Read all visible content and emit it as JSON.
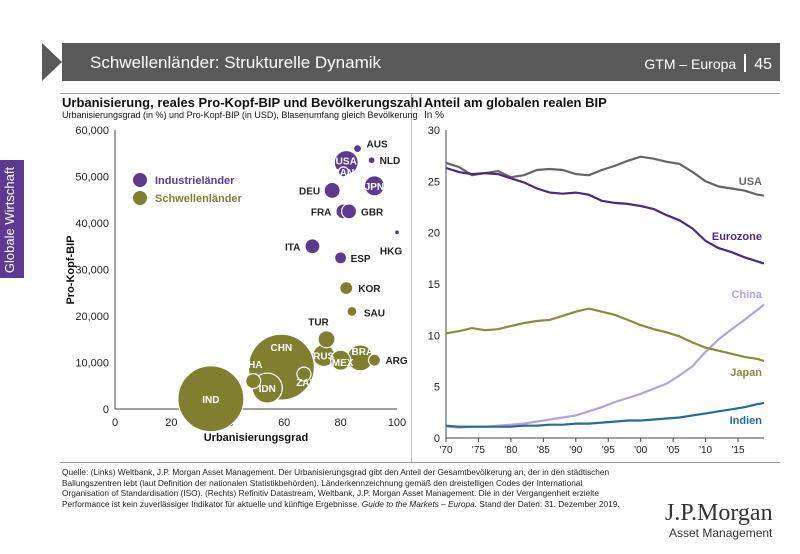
{
  "header": {
    "title": "Schwellenländer: Strukturelle Dynamik",
    "series_name": "GTM – Europa",
    "page_number": "45"
  },
  "side_tab": {
    "label": "Globale Wirtschaft",
    "color": "#5c3a8f"
  },
  "colors": {
    "developed": "#5c3a8f",
    "emerging": "#7f7f2f",
    "eurozone": "#4b2a83",
    "japan": "#8b8b3a",
    "china": "#b3a2dd",
    "india": "#1f6f9a",
    "usa": "#666666"
  },
  "footnote": {
    "text": "Quelle: (Links) Weltbank, J.P. Morgan Asset Management. Der Urbanisierungsgrad gibt den Anteil der Gesamtbevölkerung an, der in den städtischen Ballungszentren lebt (laut Definition der nationalen Statistikbehörden). Länderkennzeichnung gemäß den dreistelligen Codes der International Organisation of Standardisation (ISO). (Rechts) Refinitiv Datastream, Weltbank, J.P. Morgan Asset Management. Die in der Vergangenheit erzielte Performance ist kein zuverlässiger Indikator für aktuelle und künftige Ergebnisse.",
    "italic": "Guide to the Markets – Europa.",
    "tail": "Stand der Daten: 31. Dezember 2019."
  },
  "logo": {
    "main": "J.P.Morgan",
    "sub": "Asset Management"
  },
  "chart_data": [
    {
      "type": "scatter",
      "title": "Urbanisierung, reales Pro-Kopf-BIP und Bevölkerungszahl",
      "subtitle": "Urbanisierungsgrad (in %) und Pro-Kopf-BIP (in USD), Blasenumfang gleich Bevölkerung",
      "xlabel": "Urbanisierungsgrad",
      "ylabel": "Pro-Kopf-BIP",
      "xlim": [
        0,
        100
      ],
      "ylim": [
        0,
        60000
      ],
      "xticks": [
        "0",
        "20",
        "40",
        "60",
        "80",
        "100"
      ],
      "yticks": [
        "0",
        "10,000",
        "20,000",
        "30,000",
        "40,000",
        "50,000",
        "60,000"
      ],
      "grid": false,
      "legend_position": "top-left",
      "legend": [
        {
          "name": "Industrieländer",
          "group": "developed"
        },
        {
          "name": "Schwellenländer",
          "group": "emerging"
        }
      ],
      "points": [
        {
          "label": "USA",
          "x": 82,
          "y": 53000,
          "r": 12,
          "group": "developed"
        },
        {
          "label": "AUS",
          "x": 86,
          "y": 56000,
          "r": 4,
          "group": "developed"
        },
        {
          "label": "NLD",
          "x": 91,
          "y": 53500,
          "r": 3.5,
          "group": "developed"
        },
        {
          "label": "CAN",
          "x": 81,
          "y": 51000,
          "r": 5,
          "group": "developed"
        },
        {
          "label": "JPN",
          "x": 92,
          "y": 48000,
          "r": 10,
          "group": "developed"
        },
        {
          "label": "DEU",
          "x": 77,
          "y": 47000,
          "r": 8,
          "group": "developed"
        },
        {
          "label": "FRA",
          "x": 81,
          "y": 42500,
          "r": 7.5,
          "group": "developed"
        },
        {
          "label": "GBR",
          "x": 83,
          "y": 42500,
          "r": 7.5,
          "group": "developed"
        },
        {
          "label": "HKG",
          "x": 100,
          "y": 38000,
          "r": 2.5,
          "group": "developed"
        },
        {
          "label": "ITA",
          "x": 70,
          "y": 35000,
          "r": 7.5,
          "group": "developed"
        },
        {
          "label": "ESP",
          "x": 80,
          "y": 32500,
          "r": 6,
          "group": "developed"
        },
        {
          "label": "KOR",
          "x": 82,
          "y": 26000,
          "r": 6.5,
          "group": "emerging"
        },
        {
          "label": "SAU",
          "x": 84,
          "y": 21000,
          "r": 5,
          "group": "emerging"
        },
        {
          "label": "TUR",
          "x": 75,
          "y": 15000,
          "r": 8.5,
          "group": "emerging"
        },
        {
          "label": "RUS",
          "x": 74,
          "y": 11500,
          "r": 11,
          "group": "emerging"
        },
        {
          "label": "BRA",
          "x": 87,
          "y": 11000,
          "r": 13,
          "group": "emerging"
        },
        {
          "label": "MEX",
          "x": 80,
          "y": 10500,
          "r": 10,
          "group": "emerging"
        },
        {
          "label": "ARG",
          "x": 92,
          "y": 10500,
          "r": 6,
          "group": "emerging"
        },
        {
          "label": "CHN",
          "x": 59,
          "y": 9000,
          "r": 33,
          "group": "emerging"
        },
        {
          "label": "THA",
          "x": 49,
          "y": 6000,
          "r": 7.5,
          "group": "emerging"
        },
        {
          "label": "ZAF",
          "x": 67,
          "y": 7500,
          "r": 7,
          "group": "emerging"
        },
        {
          "label": "IDN",
          "x": 54,
          "y": 4500,
          "r": 15,
          "group": "emerging"
        },
        {
          "label": "IND",
          "x": 34,
          "y": 2200,
          "r": 33,
          "group": "emerging"
        }
      ]
    },
    {
      "type": "line",
      "title": "Anteil am globalen realen BIP",
      "subtitle": "In %",
      "xlim": [
        1970,
        2019
      ],
      "ylim": [
        0,
        30
      ],
      "xticks": [
        "'70",
        "'75",
        "'80",
        "'85",
        "'90",
        "'95",
        "'00",
        "'05",
        "'10",
        "'15"
      ],
      "yticks": [
        "0",
        "5",
        "10",
        "15",
        "20",
        "25",
        "30"
      ],
      "grid": false,
      "x": [
        1970,
        1972,
        1974,
        1976,
        1978,
        1980,
        1982,
        1984,
        1986,
        1988,
        1990,
        1992,
        1994,
        1996,
        1998,
        2000,
        2002,
        2004,
        2006,
        2008,
        2010,
        2012,
        2014,
        2016,
        2018,
        2019
      ],
      "series": [
        {
          "name": "USA",
          "key": "usa",
          "values": [
            26.8,
            26.4,
            25.6,
            25.8,
            26.0,
            25.4,
            25.6,
            26.1,
            26.2,
            26.1,
            25.7,
            25.6,
            26.1,
            26.5,
            27.0,
            27.4,
            27.2,
            26.9,
            26.7,
            25.9,
            25.0,
            24.5,
            24.3,
            24.1,
            23.7,
            23.6
          ]
        },
        {
          "name": "Eurozone",
          "key": "eurozone",
          "values": [
            26.3,
            25.9,
            25.7,
            25.8,
            25.7,
            25.3,
            24.9,
            24.3,
            23.9,
            23.8,
            23.9,
            23.7,
            23.1,
            22.9,
            22.8,
            22.6,
            22.3,
            21.7,
            21.2,
            20.4,
            19.2,
            18.5,
            18.1,
            17.6,
            17.2,
            17.0
          ]
        },
        {
          "name": "China",
          "key": "china",
          "values": [
            1.1,
            1.0,
            1.1,
            1.1,
            1.2,
            1.3,
            1.4,
            1.6,
            1.8,
            2.0,
            2.2,
            2.6,
            3.0,
            3.5,
            3.9,
            4.3,
            4.8,
            5.3,
            6.1,
            7.0,
            8.4,
            9.6,
            10.6,
            11.5,
            12.5,
            13.0
          ]
        },
        {
          "name": "Japan",
          "key": "japan",
          "values": [
            10.2,
            10.4,
            10.7,
            10.5,
            10.6,
            10.9,
            11.2,
            11.4,
            11.5,
            11.9,
            12.3,
            12.6,
            12.3,
            12.0,
            11.5,
            11.0,
            10.6,
            10.3,
            9.9,
            9.3,
            8.8,
            8.5,
            8.2,
            7.9,
            7.7,
            7.5
          ]
        },
        {
          "name": "Indien",
          "key": "india",
          "values": [
            1.2,
            1.1,
            1.1,
            1.1,
            1.1,
            1.1,
            1.2,
            1.2,
            1.3,
            1.3,
            1.4,
            1.4,
            1.5,
            1.6,
            1.7,
            1.7,
            1.8,
            1.9,
            2.0,
            2.2,
            2.4,
            2.6,
            2.8,
            3.0,
            3.3,
            3.4
          ]
        }
      ]
    }
  ]
}
